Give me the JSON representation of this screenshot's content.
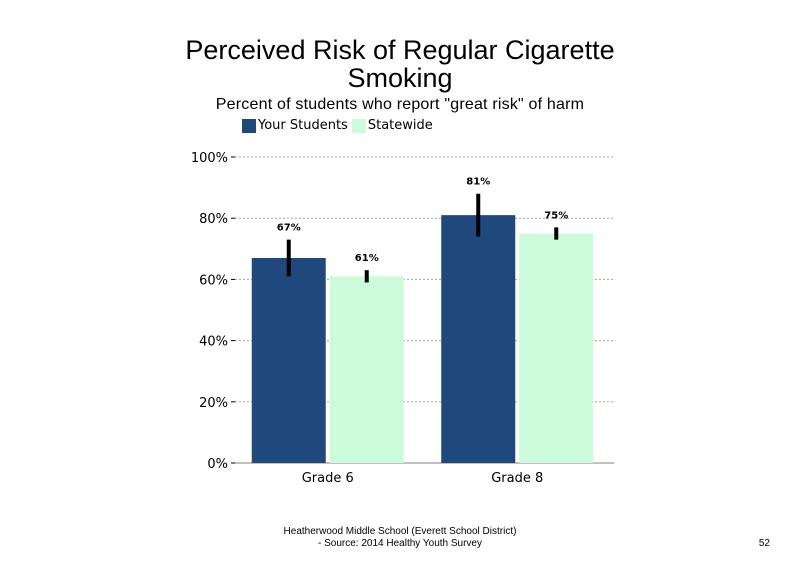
{
  "chart_data": {
    "type": "bar",
    "title": "Perceived Risk of Regular Cigarette Smoking",
    "subtitle": "Percent of students who report \"great risk\" of harm",
    "categories": [
      "Grade 6",
      "Grade 8"
    ],
    "series": [
      {
        "name": "Your Students",
        "values": [
          67,
          81
        ],
        "labels": [
          "67%",
          "81%"
        ],
        "error": [
          [
            61,
            73
          ],
          [
            74,
            88
          ]
        ],
        "color": "#1f497d"
      },
      {
        "name": "Statewide",
        "values": [
          61,
          75
        ],
        "labels": [
          "61%",
          "75%"
        ],
        "error": [
          [
            59,
            63
          ],
          [
            73,
            77
          ]
        ],
        "color": "#ccfbdc"
      }
    ],
    "ylim": [
      0,
      100
    ],
    "yticks": [
      "0%",
      "20%",
      "40%",
      "60%",
      "80%",
      "100%"
    ],
    "grid": true,
    "legend": "top-left"
  },
  "footer": {
    "line1": "Heatherwood Middle School (Everett School District)",
    "line2": "- Source: 2014 Healthy  Youth Survey"
  },
  "page_number": "52"
}
